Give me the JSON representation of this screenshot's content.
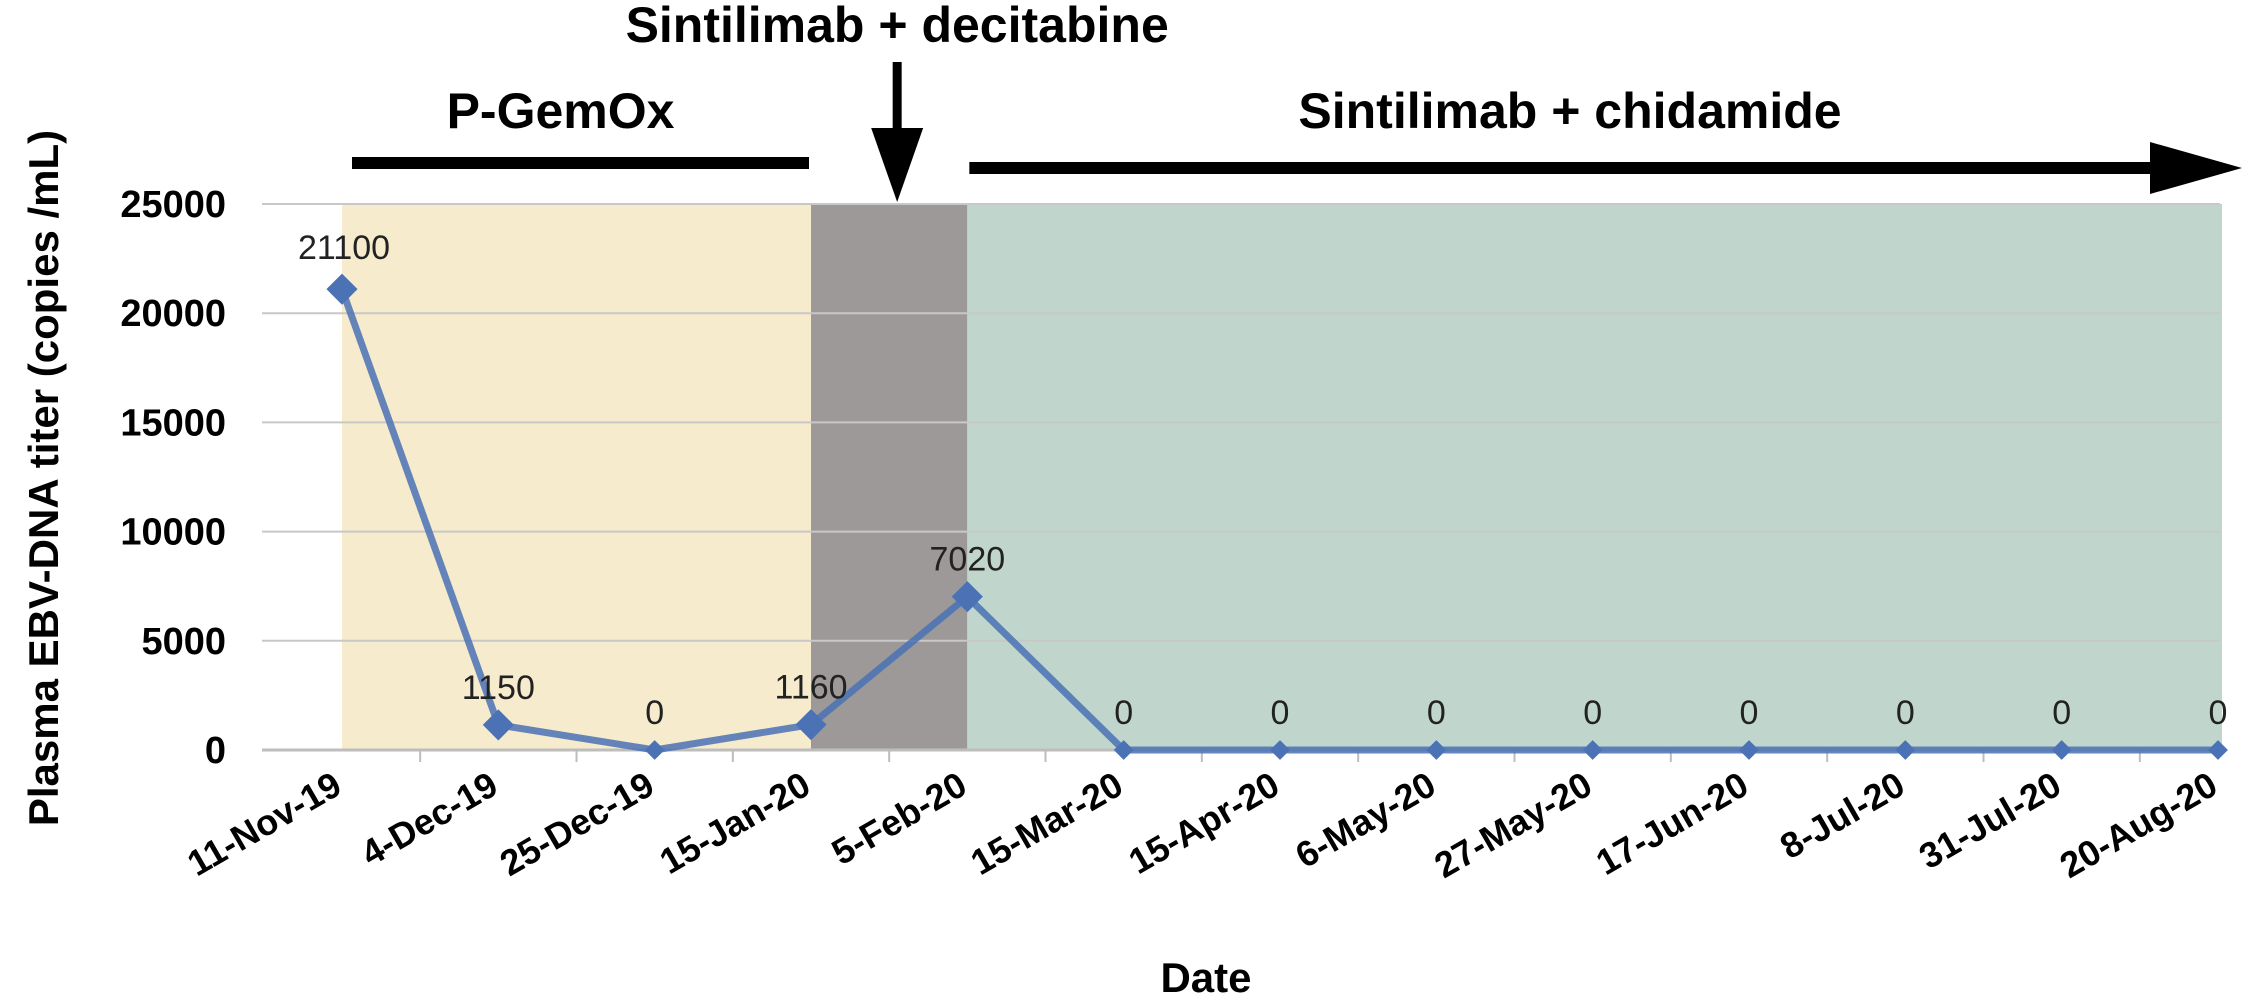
{
  "chart_data": {
    "type": "line",
    "title": "",
    "xlabel": "Date",
    "ylabel": "Plasma EBV-DNA titer (copies /mL)",
    "ylim": [
      0,
      25000
    ],
    "yticks": [
      0,
      5000,
      10000,
      15000,
      20000,
      25000
    ],
    "grid": true,
    "categories": [
      "11-Nov-19",
      "4-Dec-19",
      "25-Dec-19",
      "15-Jan-20",
      "5-Feb-20",
      "15-Mar-20",
      "15-Apr-20",
      "6-May-20",
      "27-May-20",
      "17-Jun-20",
      "8-Jul-20",
      "31-Jul-20",
      "20-Aug-20"
    ],
    "values": [
      21100,
      1150,
      0,
      1160,
      7020,
      0,
      0,
      0,
      0,
      0,
      0,
      0,
      0
    ],
    "data_labels": [
      "21100",
      "1150",
      "0",
      "1160",
      "7020",
      "0",
      "0",
      "0",
      "0",
      "0",
      "0",
      "0",
      "0"
    ],
    "line_color": "#4a72b5",
    "treatment_phases": [
      {
        "label": "P-GemOx",
        "start": "11-Nov-19",
        "end": "15-Jan-20",
        "color": "#f5e9c8"
      },
      {
        "label": "Sintilimab + decitabine",
        "start": "15-Jan-20",
        "end": "5-Feb-20",
        "color": "#8c8787"
      },
      {
        "label": "Sintilimab + chidamide",
        "start": "5-Feb-20",
        "end": "20-Aug-20",
        "color": "#b9d2c8"
      }
    ]
  }
}
